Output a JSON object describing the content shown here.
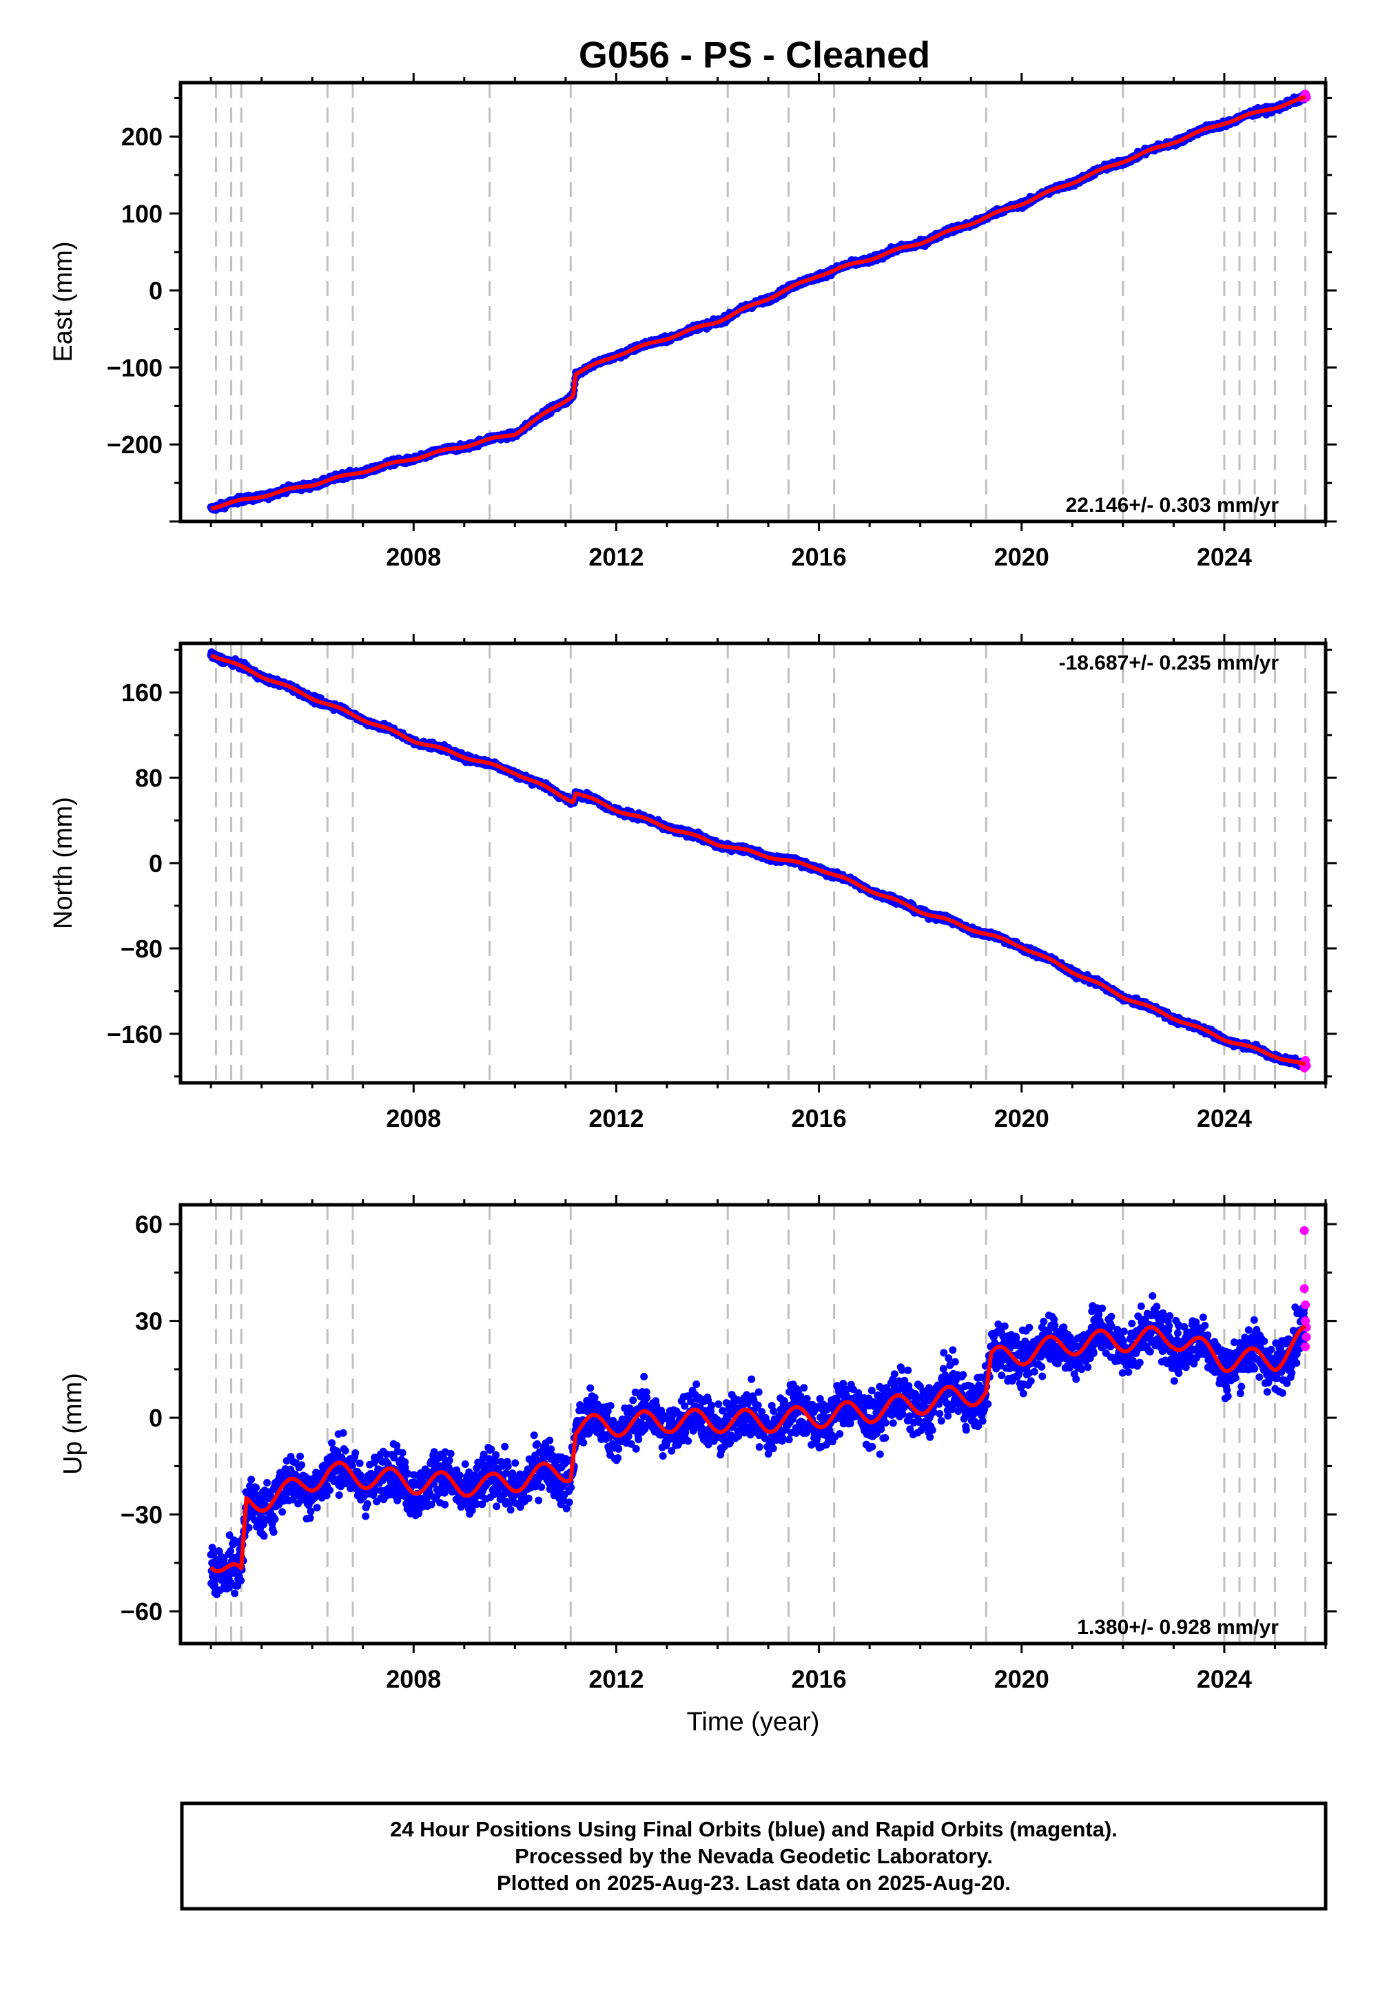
{
  "figure": {
    "title": "G056  - PS - Cleaned",
    "footer_lines": [
      "24 Hour Positions Using Final Orbits (blue) and Rapid Orbits (magenta).",
      "Processed by the Nevada Geodetic Laboratory.",
      "Plotted on 2025-Aug-23. Last data on 2025-Aug-20."
    ],
    "colors": {
      "final_orbits": "#0000ff",
      "rapid_orbits": "#ff00ff",
      "model_fit": "#ff0000",
      "event_lines": "#c0c0c0",
      "axes": "#000000"
    }
  },
  "chart_data": [
    {
      "type": "scatter",
      "component": "East",
      "ylabel": "East (mm)",
      "xlabel": "",
      "xlim": [
        2003.4,
        2026.0
      ],
      "ylim": [
        -300,
        270
      ],
      "xticks": [
        2008,
        2012,
        2016,
        2020,
        2024
      ],
      "yticks": [
        -200,
        -100,
        0,
        100,
        200
      ],
      "yticklabels": [
        "−200",
        "−100",
        "0",
        "100",
        "200"
      ],
      "rate_label": "22.146+/- 0.303 mm/yr",
      "rate_position": "bottom-right",
      "event_lines_x": [
        2004.1,
        2004.4,
        2004.6,
        2006.3,
        2006.8,
        2009.5,
        2011.1,
        2014.2,
        2015.4,
        2016.3,
        2019.3,
        2022.0,
        2024.0,
        2024.3,
        2024.6,
        2025.0,
        2025.6
      ],
      "trend": {
        "start_year": 2004.0,
        "start_value": -282,
        "rate": 22.146,
        "offsets": [
          {
            "year": 2011.2,
            "step": 28
          }
        ]
      },
      "noise_amplitude": 4,
      "seasonal_amplitude": 1.5,
      "rapid_points": [
        [
          2025.55,
          250
        ],
        [
          2025.58,
          252
        ],
        [
          2025.6,
          255
        ],
        [
          2025.62,
          251
        ]
      ],
      "series": [
        {
          "name": "Final Orbits (blue)",
          "x": [
            2004.0,
            2006.0,
            2008.0,
            2010.0,
            2011.15,
            2011.2,
            2012.0,
            2014.0,
            2016.0,
            2018.0,
            2020.0,
            2022.0,
            2024.0,
            2025.6
          ],
          "y": [
            -282,
            -252,
            -218,
            -186,
            -136,
            -108,
            -84,
            -40,
            20,
            62,
            113,
            168,
            218,
            250
          ]
        }
      ]
    },
    {
      "type": "scatter",
      "component": "North",
      "ylabel": "North (mm)",
      "xlabel": "",
      "xlim": [
        2003.4,
        2026.0
      ],
      "ylim": [
        -206,
        206
      ],
      "xticks": [
        2008,
        2012,
        2016,
        2020,
        2024
      ],
      "yticks": [
        -160,
        -80,
        0,
        80,
        160
      ],
      "yticklabels": [
        "−160",
        "−80",
        "0",
        "80",
        "160"
      ],
      "rate_label": "-18.687+/- 0.235 mm/yr",
      "rate_position": "top-right",
      "event_lines_x": [
        2004.1,
        2004.4,
        2004.6,
        2006.3,
        2006.8,
        2009.5,
        2011.1,
        2014.2,
        2015.4,
        2016.3,
        2019.3,
        2022.0,
        2024.0,
        2024.3,
        2024.6,
        2025.0,
        2025.6
      ],
      "trend": {
        "start_year": 2004.0,
        "start_value": 196,
        "rate": -18.687,
        "offsets": [
          {
            "year": 2011.2,
            "step": 8
          }
        ]
      },
      "noise_amplitude": 3,
      "seasonal_amplitude": 1.2,
      "rapid_points": [
        [
          2025.55,
          -188
        ],
        [
          2025.58,
          -192
        ],
        [
          2025.6,
          -185
        ],
        [
          2025.62,
          -190
        ]
      ],
      "series": [
        {
          "name": "Final Orbits (blue)",
          "x": [
            2004.0,
            2006.0,
            2008.0,
            2010.0,
            2011.15,
            2011.2,
            2012.0,
            2014.0,
            2016.0,
            2018.0,
            2020.0,
            2022.0,
            2024.0,
            2025.6
          ],
          "y": [
            196,
            155,
            115,
            85,
            58,
            66,
            50,
            18,
            -5,
            -45,
            -78,
            -125,
            -165,
            -190
          ]
        }
      ]
    },
    {
      "type": "scatter",
      "component": "Up",
      "ylabel": "Up (mm)",
      "xlabel": "Time (year)",
      "xlim": [
        2003.4,
        2026.0
      ],
      "ylim": [
        -70,
        66
      ],
      "xticks": [
        2008,
        2012,
        2016,
        2020,
        2024
      ],
      "yticks": [
        -60,
        -30,
        0,
        30,
        60
      ],
      "yticklabels": [
        "−60",
        "−30",
        "0",
        "30",
        "60"
      ],
      "rate_label": "1.380+/- 0.928 mm/yr",
      "rate_position": "bottom-right",
      "event_lines_x": [
        2004.1,
        2004.4,
        2004.6,
        2006.3,
        2006.8,
        2009.5,
        2011.1,
        2014.2,
        2015.4,
        2016.3,
        2019.3,
        2022.0,
        2024.0,
        2024.3,
        2024.6,
        2025.0,
        2025.6
      ],
      "noise_amplitude": 8,
      "seasonal_amplitude": 3.5,
      "rapid_points": [
        [
          2025.58,
          58
        ],
        [
          2025.58,
          40
        ],
        [
          2025.6,
          35
        ],
        [
          2025.6,
          30
        ],
        [
          2025.62,
          28
        ],
        [
          2025.62,
          25
        ],
        [
          2025.6,
          22
        ]
      ],
      "series": [
        {
          "name": "Final Orbits (blue)",
          "x": [
            2004.0,
            2004.6,
            2004.7,
            2005.5,
            2006.3,
            2008.0,
            2009.5,
            2011.1,
            2011.2,
            2013.0,
            2015.0,
            2017.0,
            2019.3,
            2019.4,
            2021.0,
            2023.0,
            2024.0,
            2025.0,
            2025.6
          ],
          "y": [
            -43,
            -50,
            -27,
            -23,
            -17,
            -20,
            -21,
            -16,
            -3,
            -1,
            -1,
            2,
            8,
            18,
            23,
            25,
            18,
            18,
            25
          ]
        }
      ]
    }
  ]
}
